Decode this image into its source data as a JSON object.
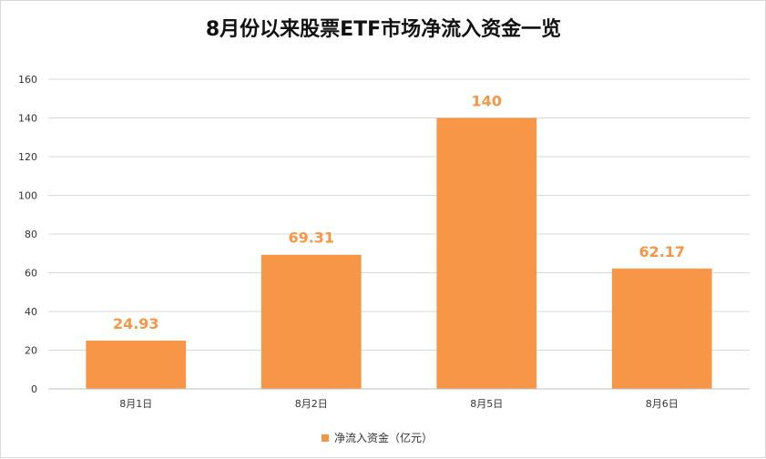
{
  "chart_data": {
    "type": "bar",
    "title": "8月份以来股票ETF市场净流入资金一览",
    "categories": [
      "8月1日",
      "8月2日",
      "8月5日",
      "8月6日"
    ],
    "series": [
      {
        "name": "净流入资金（亿元）",
        "values": [
          24.93,
          69.31,
          140,
          62.17
        ],
        "color": "#f79646"
      }
    ],
    "data_labels": [
      "24.93",
      "69.31",
      "140",
      "62.17"
    ],
    "ylim": [
      0,
      160
    ],
    "yticks": [
      0,
      20,
      40,
      60,
      80,
      100,
      120,
      140,
      160
    ],
    "grid": true,
    "legend_position": "bottom",
    "colors": {
      "bar": "#f79646",
      "label": "#f79646",
      "grid": "#d9d9d9",
      "axis": "#bfbfbf"
    }
  }
}
